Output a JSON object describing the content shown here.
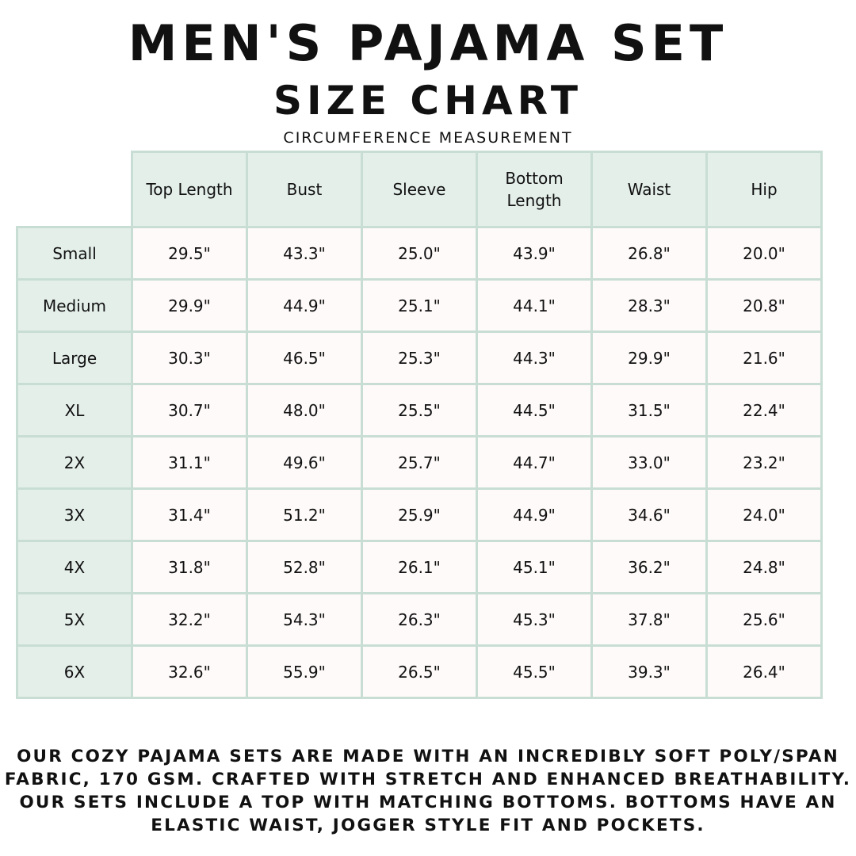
{
  "title": "MEN'S PAJAMA SET",
  "subtitle": "SIZE CHART",
  "caption": "CIRCUMFERENCE MEASUREMENT",
  "colors": {
    "header_bg": "#e4efea",
    "border": "#c8ded4"
  },
  "table": {
    "columns": [
      "Top Length",
      "Bust",
      "Sleeve",
      "Bottom Length",
      "Waist",
      "Hip"
    ],
    "rows": [
      {
        "size": "Small",
        "values": [
          "29.5\"",
          "43.3\"",
          "25.0\"",
          "43.9\"",
          "26.8\"",
          "20.0\""
        ]
      },
      {
        "size": "Medium",
        "values": [
          "29.9\"",
          "44.9\"",
          "25.1\"",
          "44.1\"",
          "28.3\"",
          "20.8\""
        ]
      },
      {
        "size": "Large",
        "values": [
          "30.3\"",
          "46.5\"",
          "25.3\"",
          "44.3\"",
          "29.9\"",
          "21.6\""
        ]
      },
      {
        "size": "XL",
        "values": [
          "30.7\"",
          "48.0\"",
          "25.5\"",
          "44.5\"",
          "31.5\"",
          "22.4\""
        ]
      },
      {
        "size": "2X",
        "values": [
          "31.1\"",
          "49.6\"",
          "25.7\"",
          "44.7\"",
          "33.0\"",
          "23.2\""
        ]
      },
      {
        "size": "3X",
        "values": [
          "31.4\"",
          "51.2\"",
          "25.9\"",
          "44.9\"",
          "34.6\"",
          "24.0\""
        ]
      },
      {
        "size": "4X",
        "values": [
          "31.8\"",
          "52.8\"",
          "26.1\"",
          "45.1\"",
          "36.2\"",
          "24.8\""
        ]
      },
      {
        "size": "5X",
        "values": [
          "32.2\"",
          "54.3\"",
          "26.3\"",
          "45.3\"",
          "37.8\"",
          "25.6\""
        ]
      },
      {
        "size": "6X",
        "values": [
          "32.6\"",
          "55.9\"",
          "26.5\"",
          "45.5\"",
          "39.3\"",
          "26.4\""
        ]
      }
    ]
  },
  "footer": "Our cozy pajama sets are made with an incredibly soft poly/span fabric, 170 GSM. Crafted with stretch and enhanced breathability. Our sets include a top with matching bottoms. Bottoms have an elastic waist, jogger style fit and pockets."
}
